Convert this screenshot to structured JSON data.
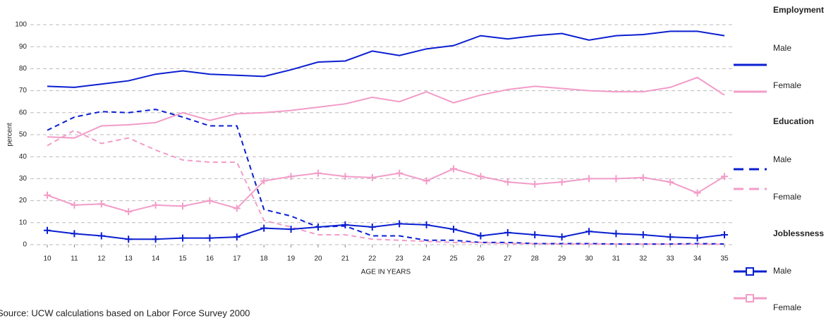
{
  "chart_data": {
    "type": "line",
    "y_label": "percent",
    "x_label": "AGE IN YEARS",
    "source": "Source: UCW calculations based on Labor Force Survey 2000",
    "x": [
      10,
      11,
      12,
      13,
      14,
      15,
      16,
      17,
      18,
      19,
      20,
      21,
      22,
      23,
      24,
      25,
      26,
      27,
      28,
      29,
      30,
      31,
      32,
      33,
      34,
      35
    ],
    "xlim": [
      10,
      35
    ],
    "xticks": [
      10,
      11,
      12,
      13,
      14,
      15,
      16,
      17,
      18,
      19,
      20,
      21,
      22,
      23,
      24,
      25,
      26,
      27,
      28,
      29,
      30,
      31,
      32,
      33,
      34,
      35
    ],
    "ylim": [
      0,
      100
    ],
    "yticks": [
      0,
      10,
      20,
      30,
      40,
      50,
      60,
      70,
      80,
      90,
      100
    ],
    "grid": true,
    "legend": "right",
    "series": [
      {
        "group": "Employment",
        "name": "Male",
        "color": "#0a1fd0",
        "style": "solid",
        "values": [
          72,
          71.5,
          73,
          74.5,
          77.5,
          79,
          77.5,
          77,
          76.5,
          79.5,
          83,
          83.5,
          88,
          86,
          89,
          90.5,
          95,
          93.5,
          95,
          96,
          93,
          95,
          95.5,
          97,
          97,
          95
        ]
      },
      {
        "group": "Employment",
        "name": "Female",
        "color": "#f29cc8",
        "style": "solid",
        "values": [
          49,
          48.5,
          54,
          54.5,
          55.5,
          60,
          56.5,
          59.5,
          60,
          61,
          62.5,
          64,
          67,
          65,
          69.5,
          64.5,
          68,
          70.5,
          72,
          71,
          70,
          69.5,
          69.5,
          71.5,
          76,
          68
        ]
      },
      {
        "group": "Education",
        "name": "Male",
        "color": "#0a1fd0",
        "style": "dashed",
        "values": [
          52,
          58,
          60.5,
          60,
          61.5,
          58,
          54,
          54,
          16,
          13,
          8,
          8.5,
          4,
          4,
          2,
          2,
          1,
          1,
          0.5,
          0.5,
          0.5,
          0.3,
          0.3,
          0.3,
          0.5,
          0.3
        ]
      },
      {
        "group": "Education",
        "name": "Female",
        "color": "#f29cc8",
        "style": "dashed",
        "values": [
          45,
          52,
          46,
          48.5,
          43,
          38.5,
          37.5,
          37.5,
          11,
          8,
          4.5,
          4.5,
          2.5,
          2,
          1.5,
          1,
          1,
          0.5,
          0.5,
          0.3,
          0.3,
          0.3,
          0.3,
          0.2,
          0.2,
          0.2
        ]
      },
      {
        "group": "Joblessness",
        "name": "Male",
        "color": "#0a1fd0",
        "style": "marker",
        "values": [
          6.5,
          5,
          4,
          2.5,
          2.5,
          3,
          3,
          3.5,
          7.5,
          7,
          8,
          9,
          8,
          9.5,
          9,
          7,
          4,
          5.5,
          4.5,
          3.5,
          6,
          5,
          4.5,
          3.5,
          3,
          4.5
        ]
      },
      {
        "group": "Joblessness",
        "name": "Female",
        "color": "#f29cc8",
        "style": "marker",
        "values": [
          22.5,
          18,
          18.5,
          15,
          18,
          17.5,
          20,
          16.5,
          29,
          31,
          32.5,
          31,
          30.5,
          32.5,
          29,
          34.5,
          31,
          28.5,
          27.5,
          28.5,
          30,
          30,
          30.5,
          28.5,
          23.5,
          31
        ]
      }
    ]
  }
}
